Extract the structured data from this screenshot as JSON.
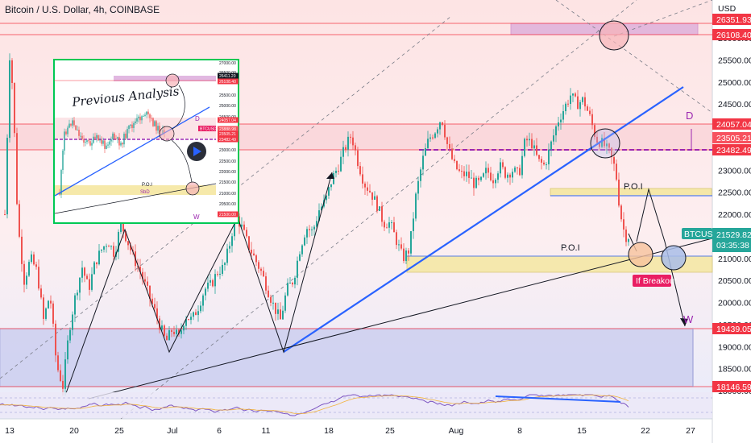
{
  "chart_data": {
    "type": "candlestick",
    "title": "Bitcoin / U.S. Dollar, 4h, COINBASE",
    "currency": "USD",
    "symbol": "BTCUSD",
    "last_price": "21529.82",
    "countdown": "03:35:38",
    "y_ticks": [
      "26000.00",
      "25500.00",
      "25000.00",
      "24500.00",
      "24000.00",
      "23500.00",
      "23000.00",
      "22500.00",
      "22000.00",
      "21500.00",
      "21000.00",
      "20500.00",
      "20000.00",
      "19500.00",
      "19000.00",
      "18500.00",
      "18000.00"
    ],
    "x_ticks": [
      "13",
      "20",
      "25",
      "Jul",
      "6",
      "11",
      "18",
      "25",
      "Aug",
      "8",
      "15",
      "22",
      "27"
    ],
    "price_tags": [
      {
        "label": "26351.93",
        "color": "#f23645"
      },
      {
        "label": "26108.40",
        "color": "#f23645"
      },
      {
        "label": "24057.04",
        "color": "#f23645"
      },
      {
        "label": "23505.21",
        "color": "#f7525f"
      },
      {
        "label": "23482.49",
        "color": "#f23645"
      },
      {
        "label": "19439.05",
        "color": "#f23645"
      },
      {
        "label": "18146.59",
        "color": "#f23645"
      }
    ],
    "annotations": {
      "poi_upper": "P.O.I",
      "poi_lower": "P.O.I",
      "breakout": "If Breakout",
      "wave_d": "D",
      "wave_w": "W"
    },
    "inset": {
      "title": "Previous Analysis",
      "ticks": [
        "27000.00",
        "26500.00",
        "25500.00",
        "25000.00",
        "24500.00",
        "24000.00",
        "23500.00",
        "23000.00",
        "22500.00",
        "22000.00",
        "21500.00",
        "21000.00",
        "20500.00",
        "20000.00"
      ],
      "tags": [
        "26411.20",
        "26108.40",
        "24057.04",
        "23888.98",
        "23505.21",
        "23482.49",
        "21500.00"
      ],
      "symbol": "BTCUSD",
      "poi": "P.O.I",
      "sbd": "SbD",
      "wave_d": "D",
      "wave_w": "W"
    },
    "colors": {
      "up": "#26a69a",
      "down": "#ef5350",
      "trendline": "#2962ff",
      "resistance": "#f23645",
      "support_zone": "#9598d4",
      "poi_zone": "#f5e7a1"
    }
  }
}
